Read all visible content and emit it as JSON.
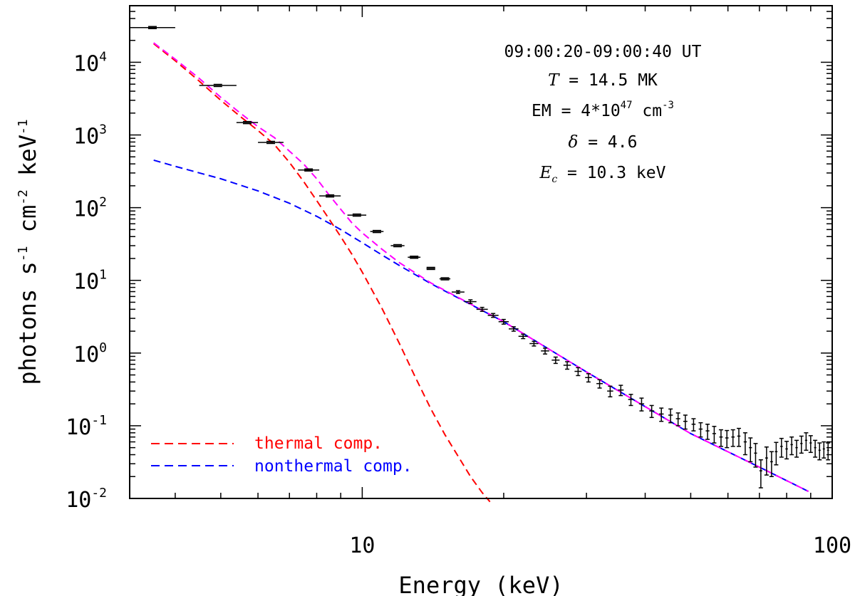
{
  "chart_data": {
    "type": "scatter",
    "title": "",
    "xlabel": "Energy (keV)",
    "ylabel": {
      "base": "photons s",
      "e1": "-1",
      "mid1": " cm",
      "e2": "-2",
      "mid2": " keV",
      "e3": "-1"
    },
    "xscale": "log",
    "yscale": "log",
    "xlim": [
      3.2,
      100
    ],
    "ylim": [
      0.01,
      60000
    ],
    "grid": false,
    "x_ticks": [
      "10",
      "100"
    ],
    "y_ticks": [
      {
        "value": 10000,
        "base": "10",
        "exp": "4"
      },
      {
        "value": 1000,
        "base": "10",
        "exp": "3"
      },
      {
        "value": 100,
        "base": "10",
        "exp": "2"
      },
      {
        "value": 10,
        "base": "10",
        "exp": "1"
      },
      {
        "value": 1,
        "base": "10",
        "exp": "0"
      },
      {
        "value": 0.1,
        "base": "10",
        "exp": "-1"
      },
      {
        "value": 0.01,
        "base": "10",
        "exp": "-2"
      }
    ],
    "annotations": {
      "time": "09:00:20-09:00:40 UT",
      "temp": {
        "sym": "T",
        "rest": " = 14.5 MK"
      },
      "em": {
        "pre": "EM = 4*10",
        "exp": "47",
        "unit": " cm",
        "unit_exp": "-3"
      },
      "delta": {
        "sym": "δ",
        "rest": " = 4.6"
      },
      "ec": {
        "sym": "E",
        "sub": "c",
        "rest": " = 10.3 keV"
      }
    },
    "legend": {
      "placement": "bottom-left",
      "items": [
        {
          "label": "thermal comp.",
          "color": "#ff0000"
        },
        {
          "label": "nonthermal comp.",
          "color": "#0000ff"
        }
      ]
    },
    "series": [
      {
        "name": "thermal comp.",
        "color": "#ff0000",
        "style": "dashed",
        "x": [
          3.6,
          4.0,
          4.5,
          5.0,
          5.5,
          6.0,
          6.5,
          7.0,
          7.5,
          8.0,
          8.5,
          9.0,
          9.5,
          10.0,
          11.0,
          12.0,
          13.0,
          14.0,
          15.0,
          16.0,
          17.0,
          18.0,
          18.7
        ],
        "y": [
          18000,
          10500,
          5500,
          3000,
          1800,
          1150,
          740,
          420,
          230,
          125,
          70,
          40,
          23,
          13,
          4.2,
          1.35,
          0.45,
          0.17,
          0.075,
          0.038,
          0.02,
          0.012,
          0.009
        ]
      },
      {
        "name": "nonthermal comp.",
        "color": "#0000ff",
        "style": "dashed",
        "x": [
          3.6,
          4.0,
          5.0,
          6.0,
          7.0,
          8.0,
          9.0,
          10.0,
          11.0,
          12.0,
          14.0,
          20.0,
          30.0,
          50.0,
          70.0,
          89.0
        ],
        "y": [
          450,
          370,
          250,
          170,
          115,
          76,
          50,
          33,
          22.5,
          16,
          9,
          2.7,
          0.55,
          0.078,
          0.027,
          0.0125
        ]
      },
      {
        "name": "total",
        "color": "#ff00ff",
        "style": "dashed",
        "x": [
          3.6,
          4.0,
          4.5,
          5.0,
          5.5,
          6.0,
          6.5,
          7.0,
          7.5,
          8.0,
          8.5,
          9.0,
          9.5,
          10.0,
          11.0,
          12.0,
          14.0,
          20.0,
          30.0,
          50.0,
          70.0,
          89.0
        ],
        "y": [
          18500,
          11000,
          6000,
          3300,
          2000,
          1300,
          920,
          600,
          400,
          250,
          150,
          95,
          62,
          45,
          27,
          17.5,
          9.2,
          2.7,
          0.55,
          0.078,
          0.027,
          0.0125
        ]
      },
      {
        "name": "observed spectrum",
        "color": "#000000",
        "style": "points",
        "points": [
          [
            3.2,
            4.0,
            30000,
            0
          ],
          [
            4.5,
            5.4,
            4800,
            0
          ],
          [
            5.4,
            6.0,
            1480,
            0
          ],
          [
            6.0,
            6.8,
            790,
            0
          ],
          [
            7.3,
            8.1,
            330,
            0
          ],
          [
            8.1,
            9.0,
            145,
            0
          ],
          [
            9.3,
            10.2,
            79,
            0
          ],
          [
            10.4,
            11.1,
            47,
            0
          ],
          [
            11.5,
            12.3,
            30,
            0
          ],
          [
            12.5,
            13.3,
            20.8,
            0
          ],
          [
            13.7,
            14.3,
            14.6,
            0
          ],
          [
            14.6,
            15.4,
            10.5,
            0
          ],
          [
            15.5,
            16.5,
            6.9,
            0.3
          ],
          [
            16.5,
            17.5,
            5.1,
            0.3
          ],
          [
            17.5,
            18.5,
            4.0,
            0.25
          ],
          [
            18.5,
            19.5,
            3.3,
            0.2
          ],
          [
            19.5,
            20.5,
            2.7,
            0.2
          ],
          [
            20.5,
            21.5,
            2.15,
            0.15
          ],
          [
            21.5,
            22.5,
            1.7,
            0.12
          ],
          [
            22.7,
            23.7,
            1.35,
            0.1
          ],
          [
            24.0,
            25.0,
            1.07,
            0.1
          ],
          [
            25.3,
            26.3,
            0.8,
            0.08
          ],
          [
            26.8,
            27.8,
            0.68,
            0.08
          ],
          [
            28.3,
            29.3,
            0.56,
            0.07
          ],
          [
            29.8,
            30.8,
            0.46,
            0.06
          ],
          [
            31.5,
            32.5,
            0.38,
            0.05
          ],
          [
            33.2,
            34.2,
            0.3,
            0.05
          ],
          [
            35.0,
            36.0,
            0.31,
            0.05
          ],
          [
            36.8,
            37.8,
            0.23,
            0.04
          ],
          [
            38.8,
            39.8,
            0.2,
            0.04
          ],
          [
            40.8,
            41.8,
            0.16,
            0.03
          ],
          [
            42.8,
            43.8,
            0.145,
            0.03
          ],
          [
            44.8,
            45.8,
            0.14,
            0.03
          ],
          [
            46.5,
            47.5,
            0.125,
            0.025
          ],
          [
            48.2,
            49.2,
            0.115,
            0.025
          ],
          [
            50.2,
            51.2,
            0.105,
            0.02
          ],
          [
            52.0,
            53.0,
            0.09,
            0.02
          ],
          [
            53.8,
            54.8,
            0.085,
            0.02
          ],
          [
            55.6,
            56.6,
            0.078,
            0.02
          ],
          [
            57.5,
            58.5,
            0.07,
            0.018
          ],
          [
            59.2,
            60.2,
            0.068,
            0.018
          ],
          [
            61.0,
            62.0,
            0.07,
            0.018
          ],
          [
            62.8,
            63.8,
            0.072,
            0.02
          ],
          [
            64.8,
            65.8,
            0.06,
            0.02
          ],
          [
            66.5,
            67.5,
            0.05,
            0.018
          ],
          [
            68.2,
            69.2,
            0.042,
            0.015
          ],
          [
            70.0,
            71.0,
            0.024,
            0.01
          ],
          [
            72.0,
            73.0,
            0.036,
            0.015
          ],
          [
            73.8,
            74.8,
            0.032,
            0.012
          ],
          [
            75.5,
            76.5,
            0.044,
            0.015
          ],
          [
            77.5,
            78.5,
            0.052,
            0.015
          ],
          [
            79.5,
            80.5,
            0.048,
            0.013
          ],
          [
            81.5,
            82.5,
            0.055,
            0.015
          ],
          [
            83.5,
            84.5,
            0.05,
            0.013
          ],
          [
            85.5,
            86.5,
            0.057,
            0.015
          ],
          [
            87.5,
            88.5,
            0.063,
            0.017
          ],
          [
            89.5,
            90.5,
            0.058,
            0.015
          ],
          [
            91.5,
            92.5,
            0.05,
            0.013
          ],
          [
            93.5,
            94.5,
            0.046,
            0.012
          ],
          [
            95.5,
            96.5,
            0.048,
            0.012
          ],
          [
            97.5,
            98.5,
            0.046,
            0.012
          ]
        ]
      }
    ]
  }
}
